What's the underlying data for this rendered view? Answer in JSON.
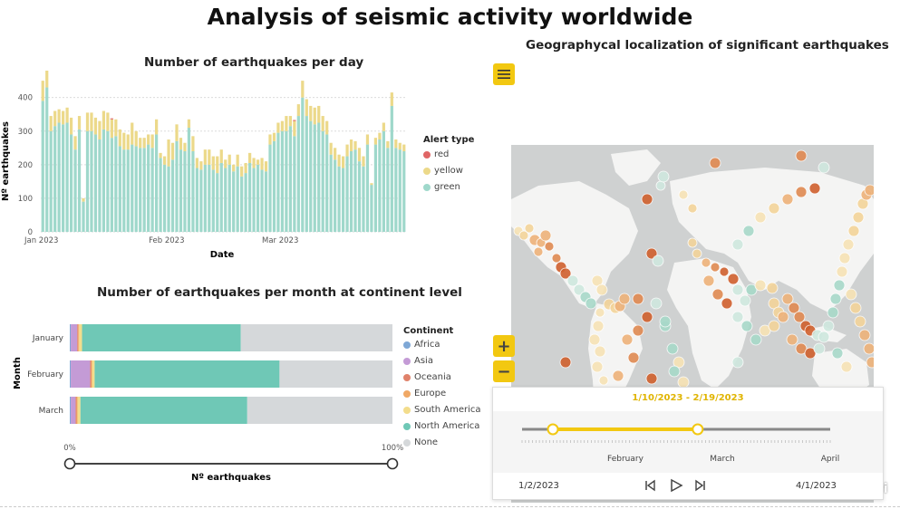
{
  "page_title": "Analysis of seismic activity worldwide",
  "daily_chart": {
    "title": "Number of earthquakes per day",
    "xlabel": "Date",
    "ylabel": "Nº earthquakes",
    "y_ticks": [
      "0",
      "100",
      "200",
      "300",
      "400"
    ],
    "x_ticks": [
      "Jan 2023",
      "Feb 2023",
      "Mar 2023"
    ],
    "legend_title": "Alert type",
    "legend": [
      {
        "label": "red",
        "color": "#e06666"
      },
      {
        "label": "yellow",
        "color": "#ecd98a"
      },
      {
        "label": "green",
        "color": "#9fd8cb"
      }
    ]
  },
  "monthly_chart": {
    "title": "Number of earthquakes per month at continent level",
    "ylabel": "Month",
    "xlabel": "Nº earthquakes",
    "x_ticks": [
      "0%",
      "100%"
    ],
    "legend_title": "Continent",
    "legend": [
      {
        "label": "Africa",
        "color": "#7fa8d6"
      },
      {
        "label": "Asia",
        "color": "#c49bd6"
      },
      {
        "label": "Oceania",
        "color": "#e0826b"
      },
      {
        "label": "Europe",
        "color": "#f0a865"
      },
      {
        "label": "South America",
        "color": "#f3dd8c"
      },
      {
        "label": "North America",
        "color": "#6fc8b6"
      },
      {
        "label": "None",
        "color": "#d5d8da"
      }
    ]
  },
  "map": {
    "title": "Geographycal localization of significant earthquakes",
    "menu_icon": "hamburger-menu-icon",
    "zoom_in": "+",
    "zoom_out": "−",
    "attribution": "esri"
  },
  "timeline": {
    "range_label": "1/10/2023  -  2/19/2023",
    "month_labels": [
      "February",
      "March",
      "April"
    ],
    "start_label": "1/2/2023",
    "end_label": "4/1/2023",
    "accent": "#f2c811",
    "selection_fraction": [
      0.0,
      0.57
    ]
  },
  "chart_data": [
    {
      "type": "bar",
      "stacked": true,
      "title": "Number of earthquakes per day",
      "xlabel": "Date",
      "ylabel": "Nº earthquakes",
      "ylim": [
        0,
        480
      ],
      "x_start": "2023-01-01",
      "x_end": "2023-03-31",
      "series": [
        {
          "name": "green",
          "color": "#9fd8cb",
          "values": [
            390,
            430,
            300,
            315,
            325,
            320,
            325,
            290,
            245,
            305,
            90,
            300,
            300,
            290,
            275,
            305,
            300,
            280,
            285,
            255,
            245,
            245,
            260,
            255,
            250,
            250,
            260,
            250,
            290,
            220,
            200,
            195,
            215,
            270,
            245,
            240,
            310,
            240,
            190,
            185,
            200,
            200,
            185,
            175,
            205,
            190,
            200,
            180,
            195,
            165,
            175,
            205,
            190,
            200,
            185,
            180,
            260,
            270,
            295,
            300,
            300,
            315,
            285,
            345,
            400,
            345,
            330,
            320,
            325,
            300,
            290,
            230,
            215,
            195,
            190,
            225,
            240,
            245,
            210,
            195,
            260,
            140,
            260,
            275,
            300,
            250,
            375,
            250,
            245,
            240
          ]
        },
        {
          "name": "yellow",
          "color": "#ecd98a",
          "values": [
            60,
            50,
            45,
            45,
            40,
            40,
            45,
            50,
            40,
            40,
            10,
            55,
            55,
            50,
            55,
            55,
            55,
            55,
            50,
            50,
            50,
            45,
            65,
            45,
            30,
            30,
            30,
            40,
            45,
            15,
            25,
            80,
            50,
            50,
            35,
            25,
            25,
            45,
            30,
            25,
            45,
            45,
            40,
            50,
            40,
            25,
            30,
            20,
            35,
            30,
            30,
            30,
            30,
            15,
            35,
            30,
            30,
            25,
            30,
            30,
            45,
            30,
            45,
            35,
            50,
            50,
            45,
            50,
            50,
            45,
            40,
            35,
            35,
            35,
            35,
            35,
            35,
            25,
            40,
            30,
            30,
            5,
            20,
            20,
            25,
            20,
            40,
            25,
            20,
            20
          ]
        },
        {
          "name": "red",
          "color": "#e06666",
          "values": [
            0,
            0,
            0,
            0,
            0,
            0,
            0,
            0,
            0,
            0,
            0,
            0,
            0,
            0,
            0,
            0,
            0,
            3,
            0,
            0,
            0,
            0,
            0,
            0,
            0,
            0,
            0,
            0,
            0,
            0,
            0,
            0,
            0,
            0,
            0,
            0,
            0,
            0,
            0,
            0,
            0,
            0,
            0,
            0,
            0,
            0,
            0,
            0,
            0,
            0,
            0,
            0,
            0,
            0,
            0,
            0,
            0,
            0,
            0,
            0,
            0,
            0,
            3,
            0,
            0,
            0,
            0,
            0,
            0,
            0,
            0,
            0,
            0,
            0,
            0,
            0,
            0,
            0,
            0,
            0,
            0,
            0,
            0,
            0,
            0,
            0,
            0,
            0,
            0,
            0
          ]
        }
      ]
    },
    {
      "type": "bar",
      "orientation": "horizontal",
      "stacked": true,
      "percent": true,
      "title": "Number of earthquakes per month at continent level",
      "categories": [
        "January",
        "February",
        "March"
      ],
      "xlim": [
        0,
        100
      ],
      "series": [
        {
          "name": "Africa",
          "values": [
            0.3,
            0.3,
            0.3
          ]
        },
        {
          "name": "Asia",
          "values": [
            2.0,
            6.0,
            1.5
          ]
        },
        {
          "name": "Oceania",
          "values": [
            0.3,
            0.3,
            0.3
          ]
        },
        {
          "name": "Europe",
          "values": [
            0.3,
            0.3,
            0.3
          ]
        },
        {
          "name": "South America",
          "values": [
            0.9,
            0.8,
            0.9
          ]
        },
        {
          "name": "North America",
          "values": [
            49.2,
            57.3,
            51.7
          ]
        },
        {
          "name": "None",
          "values": [
            47.0,
            35.0,
            45.0
          ]
        }
      ]
    }
  ]
}
